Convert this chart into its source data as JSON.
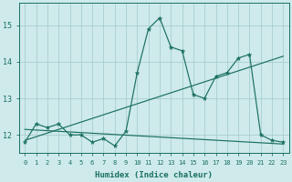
{
  "x": [
    0,
    1,
    2,
    3,
    4,
    5,
    6,
    7,
    8,
    9,
    10,
    11,
    12,
    13,
    14,
    15,
    16,
    17,
    18,
    19,
    20,
    21,
    22,
    23
  ],
  "y_main": [
    11.8,
    12.3,
    12.2,
    12.3,
    12.0,
    12.0,
    11.8,
    11.9,
    11.7,
    12.1,
    13.7,
    14.9,
    15.2,
    14.4,
    14.3,
    13.1,
    13.0,
    13.6,
    13.7,
    14.1,
    14.2,
    12.0,
    11.85,
    11.8
  ],
  "y_trend1_x": [
    0,
    23
  ],
  "y_trend1_y": [
    11.85,
    14.15
  ],
  "y_trend2_x": [
    0,
    23
  ],
  "y_trend2_y": [
    12.15,
    11.75
  ],
  "color": "#1a7060",
  "bg_color": "#ceeaea",
  "grid_color": "#a8cece",
  "xlabel": "Humidex (Indice chaleur)",
  "yticks": [
    12,
    13,
    14,
    15
  ],
  "xticks": [
    0,
    1,
    2,
    3,
    4,
    5,
    6,
    7,
    8,
    9,
    10,
    11,
    12,
    13,
    14,
    15,
    16,
    17,
    18,
    19,
    20,
    21,
    22,
    23
  ],
  "ylim": [
    11.5,
    15.6
  ],
  "xlim": [
    -0.5,
    23.5
  ]
}
